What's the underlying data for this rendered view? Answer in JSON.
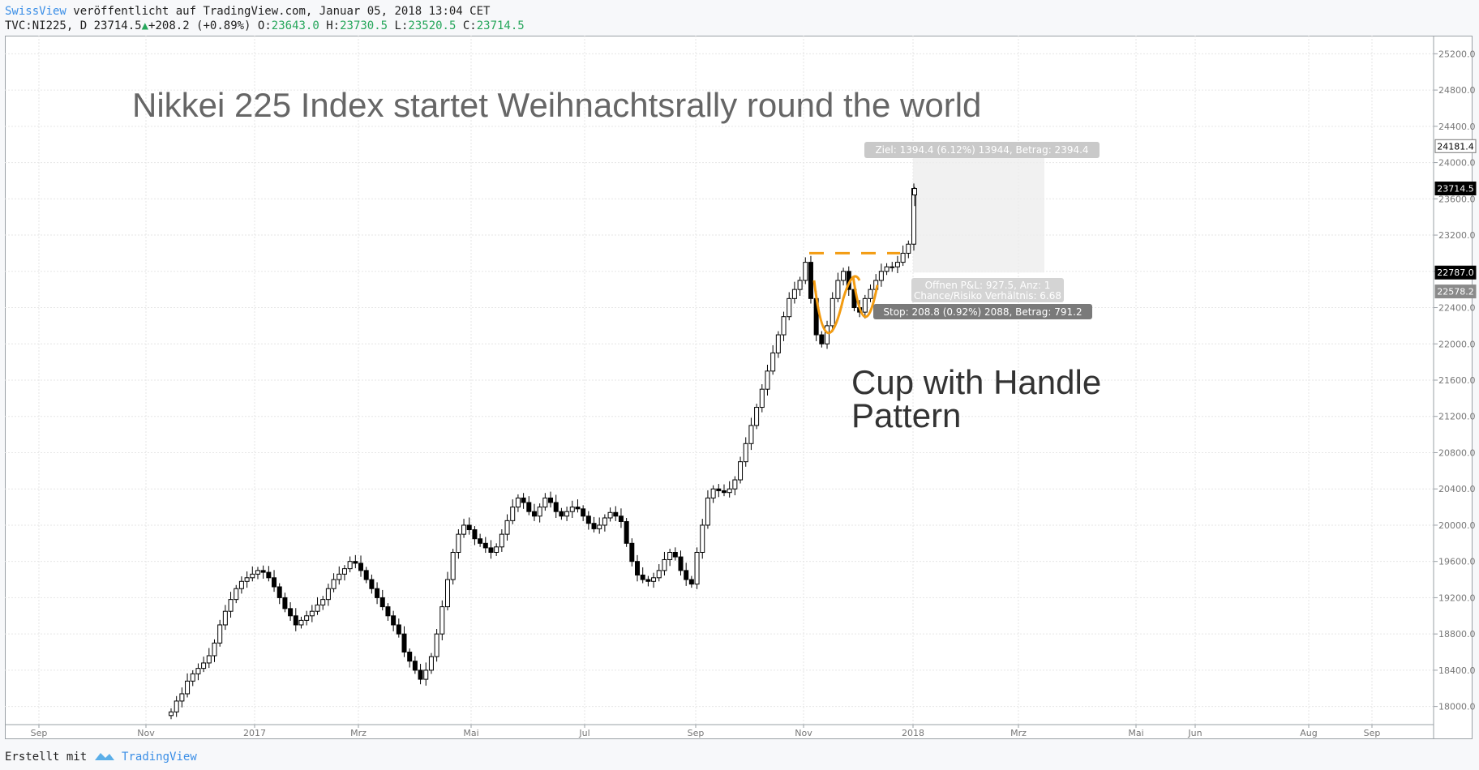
{
  "header": {
    "publisher": "SwissView",
    "published_text": "veröffentlicht auf TradingView.com, Januar 05, 2018 13:04 CET",
    "symbol_line": "TVC:NI225, D",
    "last": "23714.5",
    "change": "+208.2 (+0.89%)",
    "open_label": "O:",
    "open": "23643.0",
    "high_label": "H:",
    "high": "23730.5",
    "low_label": "L:",
    "low": "23520.5",
    "close_label": "C:",
    "close": "23714.5",
    "up_arrow": "▲"
  },
  "footer": {
    "created_with": "Erstellt mit",
    "brand": "TradingView",
    "logo_icon": "tradingview-logo-icon"
  },
  "chart_data": {
    "type": "candlestick",
    "title": "Nikkei 225 Index startet Weihnachtsrally round the world",
    "annotation": [
      "Cup with Handle",
      "Pattern"
    ],
    "ylim": [
      17800,
      25400
    ],
    "y_ticks": [
      "18000.0",
      "18400.0",
      "18800.0",
      "19200.0",
      "19600.0",
      "20000.0",
      "20400.0",
      "20800.0",
      "21200.0",
      "21600.0",
      "22000.0",
      "22400.0",
      "22800.0",
      "23200.0",
      "23600.0",
      "24000.0",
      "24400.0",
      "24800.0",
      "25200.0"
    ],
    "x_ticks": [
      "Sep",
      "Nov",
      "2017",
      "Mrz",
      "Mai",
      "Jul",
      "Sep",
      "Nov",
      "2018",
      "Mrz",
      "Mai",
      "Jun",
      "Aug",
      "Sep"
    ],
    "price_tags": [
      {
        "value": "24181.4",
        "style": "plain"
      },
      {
        "value": "23714.5",
        "style": "dark"
      },
      {
        "value": "22787.0",
        "style": "dark"
      },
      {
        "value": "22578.2",
        "style": "gray"
      }
    ],
    "position_tool": {
      "target_label": "Ziel: 1394.4 (6.12%) 13944, Betrag: 2394.4",
      "pnl_label": "Offnen P&L: 927.5, Anz: 1",
      "ratio_label": "Chance/Risiko Verhältnis: 6.68",
      "stop_label": "Stop: 208.8 (0.92%) 2088, Betrag: 791.2",
      "target_price": 24181.4,
      "entry_price": 22787.0,
      "stop_price": 22578.2
    },
    "close_series": [
      17940,
      18060,
      18140,
      18280,
      18360,
      18420,
      18480,
      18560,
      18700,
      18900,
      19050,
      19180,
      19300,
      19380,
      19420,
      19460,
      19500,
      19480,
      19420,
      19320,
      19200,
      19080,
      19000,
      18900,
      18950,
      19000,
      19050,
      19120,
      19180,
      19300,
      19400,
      19460,
      19520,
      19600,
      19580,
      19500,
      19400,
      19300,
      19200,
      19100,
      19000,
      18900,
      18800,
      18600,
      18500,
      18400,
      18300,
      18400,
      18550,
      18800,
      19100,
      19400,
      19700,
      19900,
      20000,
      19950,
      19850,
      19800,
      19750,
      19700,
      19760,
      19900,
      20050,
      20200,
      20300,
      20250,
      20150,
      20100,
      20200,
      20300,
      20250,
      20150,
      20100,
      20150,
      20200,
      20180,
      20100,
      20020,
      19960,
      20000,
      20080,
      20140,
      20100,
      20040,
      19800,
      19600,
      19450,
      19400,
      19380,
      19420,
      19500,
      19620,
      19700,
      19650,
      19500,
      19400,
      19350,
      19700,
      20000,
      20300,
      20400,
      20380,
      20360,
      20400,
      20500,
      20700,
      20900,
      21100,
      21300,
      21500,
      21700,
      21900,
      22100,
      22300,
      22500,
      22600,
      22700,
      22900,
      22500,
      22100,
      22000,
      22200,
      22500,
      22700,
      22800,
      22600,
      22400,
      22350,
      22500,
      22600,
      22700,
      22800,
      22850,
      22850,
      22900,
      23000,
      23100,
      23714
    ]
  }
}
